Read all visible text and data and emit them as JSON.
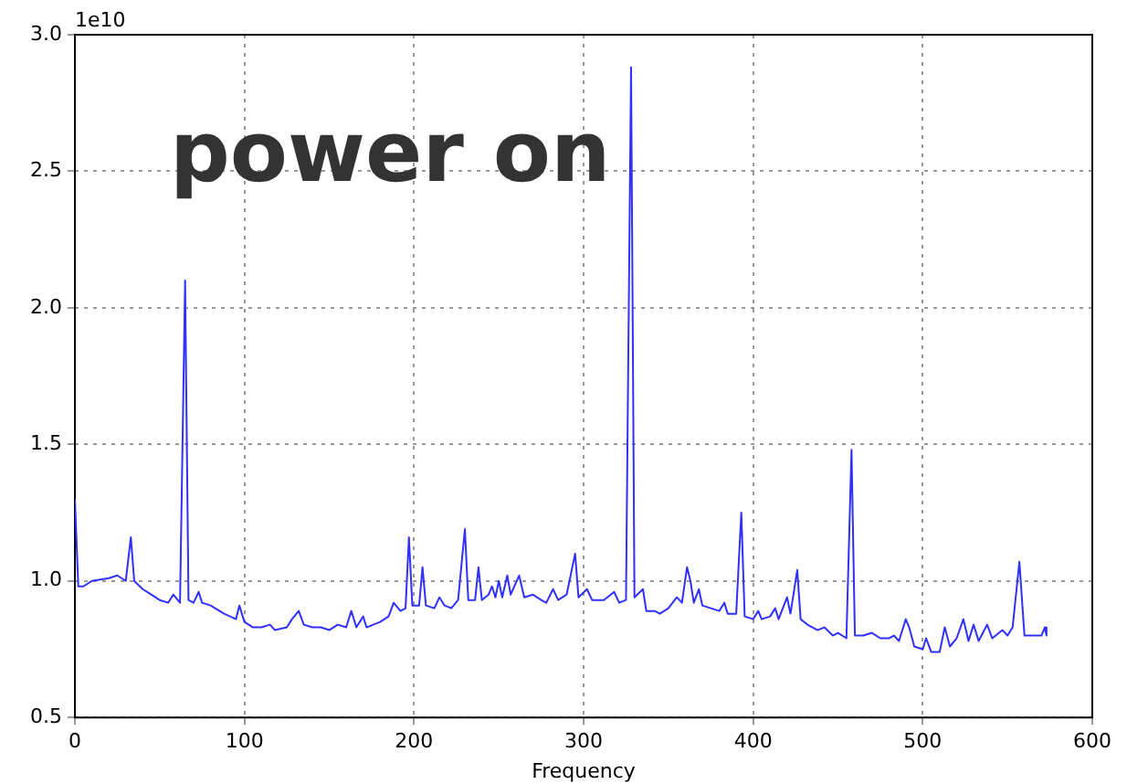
{
  "chart_data": {
    "type": "line",
    "xlabel": "Frequency",
    "annotations": [
      "1e10",
      "power on"
    ],
    "xlim": [
      0,
      600
    ],
    "xticks": [
      0,
      100,
      200,
      300,
      400,
      500,
      600
    ],
    "ylim": [
      0.5,
      3.0
    ],
    "yticks": [
      {
        "value": 0.5,
        "label": "0.5"
      },
      {
        "value": 1,
        "label": "1.0"
      },
      {
        "value": 1.5,
        "label": "1.5"
      },
      {
        "value": 2,
        "label": "2.0"
      },
      {
        "value": 2.5,
        "label": "2.5"
      },
      {
        "value": 3,
        "label": "3.0"
      }
    ],
    "grid": true,
    "marker": "none",
    "line_style": "solid",
    "x": [
      0,
      2,
      5,
      10,
      20,
      25,
      30,
      33,
      35,
      40,
      45,
      50,
      55,
      58,
      62,
      65,
      67,
      70,
      73,
      75,
      80,
      88,
      95,
      97,
      100,
      105,
      110,
      115,
      118,
      125,
      128,
      132,
      135,
      140,
      145,
      150,
      155,
      160,
      163,
      166,
      170,
      172,
      180,
      185,
      188,
      192,
      195,
      197,
      199,
      203,
      205,
      207,
      212,
      215,
      218,
      222,
      226,
      230,
      232,
      236,
      238,
      240,
      244,
      246,
      248,
      250,
      252,
      255,
      257,
      262,
      265,
      270,
      275,
      278,
      282,
      285,
      290,
      295,
      297,
      302,
      305,
      312,
      318,
      321,
      325,
      328,
      330,
      335,
      337,
      342,
      345,
      350,
      355,
      358,
      361,
      363,
      365,
      368,
      370,
      375,
      380,
      383,
      385,
      390,
      393,
      395,
      400,
      403,
      405,
      410,
      413,
      415,
      420,
      422,
      426,
      428,
      432,
      438,
      442,
      447,
      450,
      455,
      458,
      460,
      465,
      470,
      475,
      480,
      483,
      486,
      490,
      492,
      495,
      500,
      502,
      505,
      510,
      513,
      516,
      520,
      524,
      527,
      530,
      533,
      538,
      541,
      547,
      550,
      553,
      557,
      560,
      565,
      570,
      572,
      573
    ],
    "series": [
      {
        "color": "#3030ff",
        "values": [
          1.3,
          0.98,
          0.98,
          1.0,
          1.01,
          1.02,
          1.0,
          1.16,
          1.0,
          0.97,
          0.95,
          0.93,
          0.92,
          0.95,
          0.92,
          2.1,
          0.93,
          0.92,
          0.96,
          0.92,
          0.91,
          0.88,
          0.86,
          0.91,
          0.85,
          0.83,
          0.83,
          0.84,
          0.82,
          0.83,
          0.86,
          0.89,
          0.84,
          0.83,
          0.83,
          0.82,
          0.84,
          0.83,
          0.89,
          0.83,
          0.87,
          0.83,
          0.85,
          0.87,
          0.92,
          0.89,
          0.9,
          1.16,
          0.91,
          0.91,
          1.05,
          0.91,
          0.9,
          0.94,
          0.91,
          0.9,
          0.93,
          1.19,
          0.93,
          0.93,
          1.05,
          0.93,
          0.95,
          0.98,
          0.94,
          1.0,
          0.94,
          1.02,
          0.95,
          1.02,
          0.94,
          0.95,
          0.93,
          0.92,
          0.97,
          0.93,
          0.95,
          1.1,
          0.94,
          0.97,
          0.93,
          0.93,
          0.96,
          0.92,
          0.93,
          2.88,
          0.94,
          0.97,
          0.89,
          0.89,
          0.88,
          0.9,
          0.94,
          0.92,
          1.05,
          1.0,
          0.92,
          0.97,
          0.91,
          0.9,
          0.89,
          0.92,
          0.88,
          0.88,
          1.25,
          0.87,
          0.86,
          0.89,
          0.86,
          0.87,
          0.9,
          0.86,
          0.94,
          0.88,
          1.04,
          0.86,
          0.84,
          0.82,
          0.83,
          0.8,
          0.81,
          0.79,
          1.48,
          0.8,
          0.8,
          0.81,
          0.79,
          0.79,
          0.8,
          0.78,
          0.86,
          0.83,
          0.76,
          0.75,
          0.79,
          0.74,
          0.74,
          0.83,
          0.76,
          0.79,
          0.86,
          0.78,
          0.84,
          0.78,
          0.84,
          0.79,
          0.82,
          0.8,
          0.83,
          1.07,
          0.8,
          0.8,
          0.8,
          0.83,
          0.8
        ]
      }
    ]
  }
}
